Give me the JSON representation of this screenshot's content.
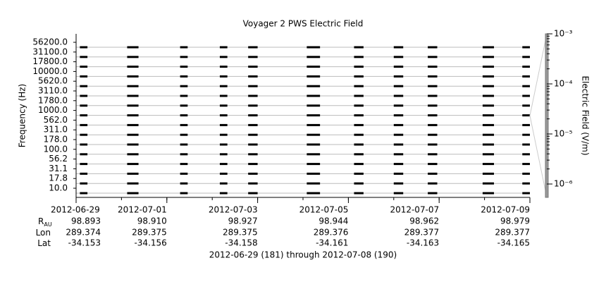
{
  "chart_data": {
    "type": "spectrogram",
    "title": "Voyager 2 PWS Electric Field",
    "y_label": "Frequency (Hz)",
    "categories": [
      "10.0",
      "17.8",
      "31.1",
      "56.2",
      "100.0",
      "178.0",
      "311.0",
      "562.0",
      "1000.0",
      "1780.0",
      "3110.0",
      "5620.0",
      "10000.0",
      "17800.0",
      "31100.0",
      "56200.0"
    ],
    "xlim": [
      "2012-06-29T00:00",
      "2012-07-09T00:00"
    ],
    "xticks": [
      "2012-06-29",
      "2012-07-01",
      "2012-07-03",
      "2012-07-05",
      "2012-07-07",
      "2012-07-09"
    ],
    "segments": [
      {
        "start": "2012-06-29T02:00",
        "end": "2012-06-29T06:00"
      },
      {
        "start": "2012-06-30T03:00",
        "end": "2012-06-30T09:00"
      },
      {
        "start": "2012-07-01T07:00",
        "end": "2012-07-01T11:00"
      },
      {
        "start": "2012-07-02T04:00",
        "end": "2012-07-02T08:00"
      },
      {
        "start": "2012-07-02T19:00",
        "end": "2012-07-03T00:00"
      },
      {
        "start": "2012-07-04T02:00",
        "end": "2012-07-04T09:00"
      },
      {
        "start": "2012-07-05T03:00",
        "end": "2012-07-05T08:00"
      },
      {
        "start": "2012-07-06T00:00",
        "end": "2012-07-06T05:00"
      },
      {
        "start": "2012-07-06T18:00",
        "end": "2012-07-06T23:00"
      },
      {
        "start": "2012-07-07T23:00",
        "end": "2012-07-08T05:00"
      },
      {
        "start": "2012-07-08T20:00",
        "end": "2012-07-09T00:00"
      }
    ],
    "colorbar": {
      "label": "Electric Field (V/m)",
      "log": true,
      "zlim": [
        5.4e-07,
        0.001
      ],
      "ticks": [
        {
          "value": 1e-06,
          "label": "10⁻⁶"
        },
        {
          "value": 1e-05,
          "label": "10⁻⁵"
        },
        {
          "value": 0.0001,
          "label": "10⁻⁴"
        },
        {
          "value": 0.001,
          "label": "10⁻³"
        }
      ]
    },
    "ephemeris": [
      {
        "name": "R",
        "sub": "AU",
        "values": [
          "98.893",
          "98.910",
          "98.927",
          "98.944",
          "98.962",
          "98.979"
        ]
      },
      {
        "name": "Lon",
        "values": [
          "289.374",
          "289.375",
          "289.375",
          "289.376",
          "289.377",
          "289.377"
        ]
      },
      {
        "name": "Lat",
        "values": [
          "-34.153",
          "-34.156",
          "-34.158",
          "-34.161",
          "-34.163",
          "-34.165"
        ]
      }
    ],
    "footer": "2012-06-29 (181) through 2012-07-08 (190)"
  }
}
